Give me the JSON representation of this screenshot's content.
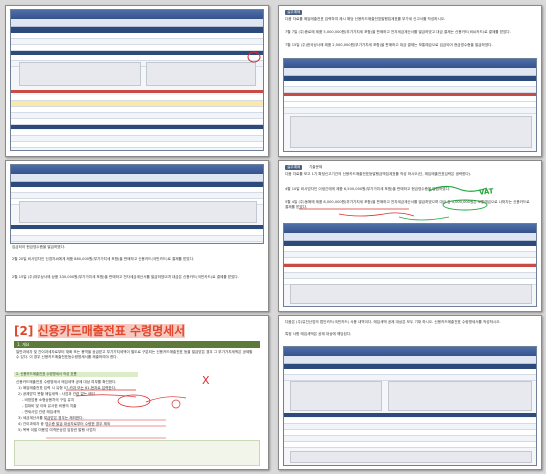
{
  "p2": {
    "tag": "실무예제",
    "intro": "다음 자료를 매입매출전표 입력하여 제시 해당 신용카드매출전표발행집계표를 부가세 신고서를 작성하시오.",
    "item1": "7월 7일 (주)종로에 제품 5,000,000원(부가가치세 포함)을 판매하고 전자세금계산서를 발급하였고 대금 결제는 신용카드(비씨카드)로 결제를 받았다.",
    "item2": "7월 15일 (주)한국상사에 제품 2,500,000원(부가가치세 포함)을 판매하고 대금 결제는 보통예금으로 입금되어 현금영수증을 발급하였다."
  },
  "p3": {
    "note": "입금되어 현금영수증을 발급하였다.",
    "item1": "2월 20일 비사업자인 신경자씨에게 제품 880,000원(부가가치세 포함)을 판매하고 신용카드(국민카드)로 결제를 받았다.",
    "item2": "2월 15일 (주)대우상사에 상품 330,000원(부가가치세 포함)을 판매하고 전자세금계산서를 발급하였으며 대금은 신용카드(국민카드)로 결제를 받았다."
  },
  "p4": {
    "tag": "실무예제",
    "tag2": "기출문제",
    "intro": "다음 자료를 보고 1기 확정신고기간의 신용카드매출전표등발행금액집계표를 작성 하시오(단, 매입매출전표입력은 생략한다).",
    "item1": "4월 10일 비사업자인 이생긴에게 제품 6,500,000원(부가가치세 포함)을 판매하고 현금영수증을 발급하였다.",
    "item2": "5월 4일 (주)동해에 제품 8,000,000원(부가가치세 포함)을 판매하고 전자세금계산서를 발급하였으며 대금 중 4,000,000원은 보통예금으로 나머지는 신용카드로 결제를 받았다.",
    "handwriting": "VAT"
  },
  "p5": {
    "number": "[2]",
    "title": "신용카드매출전표 수령명세서",
    "section": "1. 개요",
    "overview": "일반과세자 및 간이과세자로부터 재화 또는 용역을 공급받고 부가가치세액이 별도로 구분되는 신용카드매출전표 등을 발급받은 경우 그 부가가치세액은 공제할 수 있다. 이 경우 신용카드매출전표등수령명세서를 제출하여야 한다.",
    "step": "2. 신용카드매출전표 수령명세서 작성 흐름",
    "lines": [
      "신용카드매출전표 수령명세서 매입세액 공제 대상 여부를 확인한다.",
      "1) 매입매출전표 입력 시 유형 57.카과 또는 61.현과로 입력한다.",
      "2) 공제받지 못할 매입세액 : 사업과 관련 없는 매입",
      "- 비영업용 소형승용차의 구입 유지",
      "- 접대비 및 이와 유사한 비용의 지출",
      "- 면세사업 관련 매입세액",
      "3) 세금계산서를 발급받은 경우는 제외한다.",
      "4) 간이과세자 중 영수증 발급 대상자로부터 수령한 경우 제외",
      "5) 목욕 이발 미용업 여객운송업 입장권 발행 사업자"
    ],
    "handwriting": "X"
  },
  "p6": {
    "intro": "다음은 (주)유진산업의 법인카드(국민카드) 사용 내역이다. 매입세액 공제 대상은 모두 기재 하시오. 신용카드매출전표 수령명세서를 작성하시오.",
    "item": "특정 사항 매입세액은 공제 대상에 해당된다."
  }
}
